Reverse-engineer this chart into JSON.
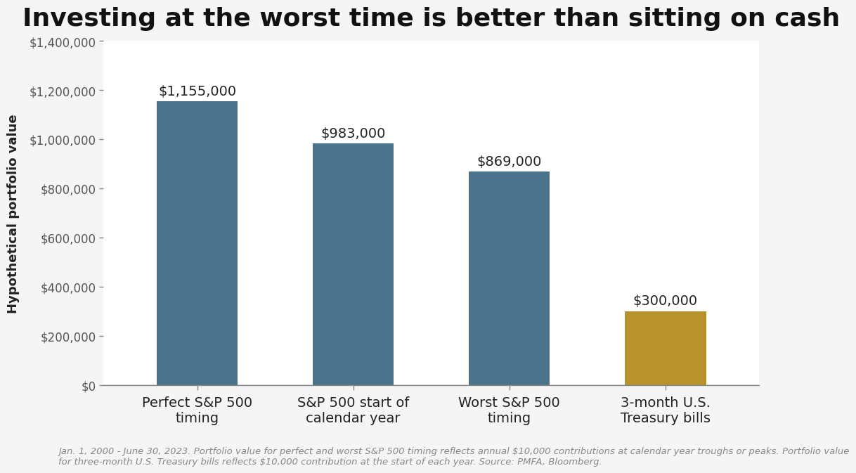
{
  "title": "Investing at the worst time is better than sitting on cash",
  "categories": [
    "Perfect S&P 500\ntiming",
    "S&P 500 start of\ncalendar year",
    "Worst S&P 500\ntiming",
    "3-month U.S.\nTreasury bills"
  ],
  "values": [
    1155000,
    983000,
    869000,
    300000
  ],
  "bar_labels": [
    "$1,155,000",
    "$983,000",
    "$869,000",
    "$300,000"
  ],
  "bar_colors": [
    "#4a728a",
    "#4a728a",
    "#4a728a",
    "#b8922a"
  ],
  "ylabel": "Hypothetical portfolio value",
  "ylim": [
    0,
    1400000
  ],
  "yticks": [
    0,
    200000,
    400000,
    600000,
    800000,
    1000000,
    1200000,
    1400000
  ],
  "ytick_labels": [
    "$0",
    "$200,000",
    "$400,000",
    "$600,000",
    "$800,000",
    "$1,000,000",
    "$1,200,000",
    "$1,400,000"
  ],
  "footnote_line1": "Jan. 1, 2000 - June 30, 2023. Portfolio value for perfect and worst S&P 500 timing reflects annual $10,000 contributions at calendar year troughs or peaks. Portfolio value",
  "footnote_line2": "for three-month U.S. Treasury bills reflects $10,000 contribution at the start of each year. Source: PMFA, Bloomberg.",
  "background_color": "#f5f5f5",
  "plot_bg_color": "#ffffff",
  "title_fontsize": 26,
  "label_fontsize": 14,
  "ylabel_fontsize": 13,
  "tick_fontsize": 12,
  "footnote_fontsize": 9.5,
  "bar_label_fontsize": 14,
  "bar_width": 0.52
}
